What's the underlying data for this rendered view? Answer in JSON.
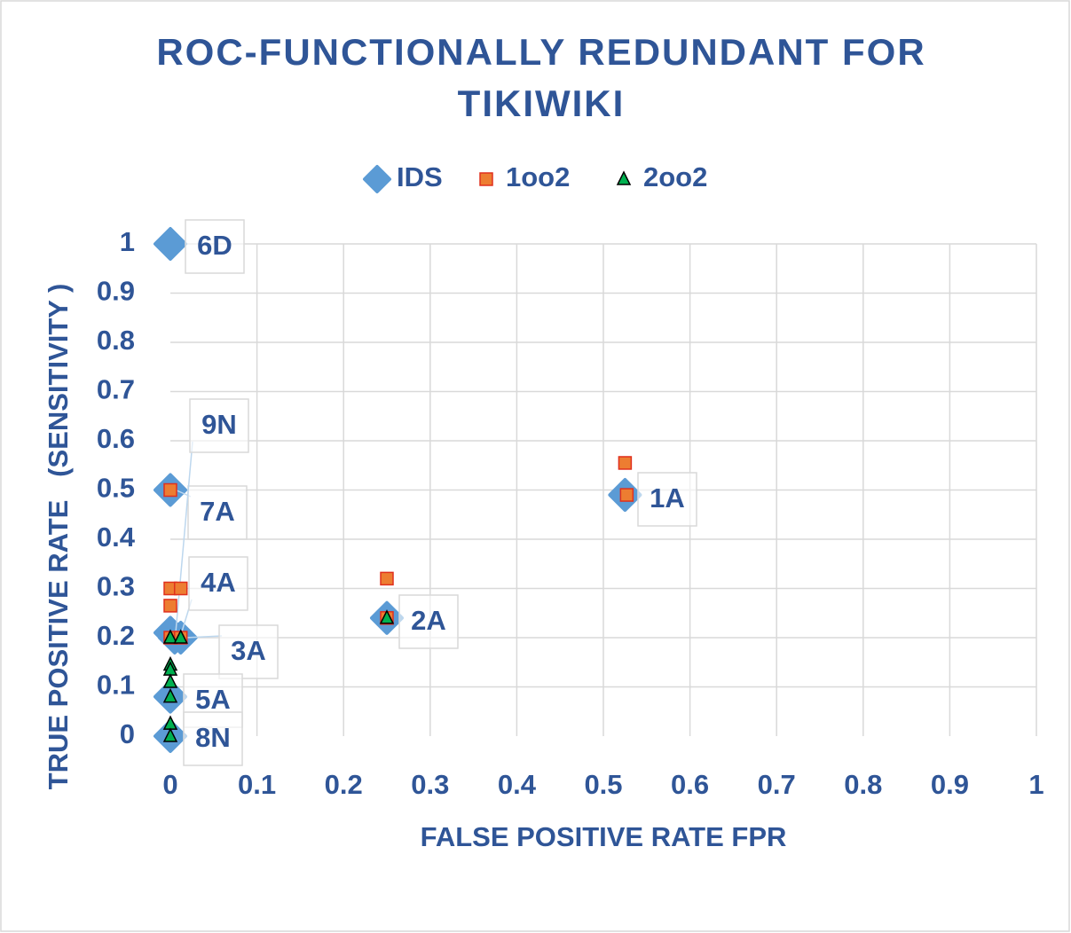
{
  "chart_data": {
    "type": "scatter",
    "title": "ROC-FUNCTIONALLY REDUNDANT FOR TIKIWIKI",
    "xlabel": "FALSE POSITIVE RATE FPR",
    "ylabel": "TRUE POSITIVE RATE   (SENSITIVITY )",
    "xlim": [
      0,
      1
    ],
    "ylim": [
      0,
      1
    ],
    "xticks": [
      0,
      0.1,
      0.2,
      0.3,
      0.4,
      0.5,
      0.6,
      0.7,
      0.8,
      0.9,
      1
    ],
    "yticks": [
      0,
      0.1,
      0.2,
      0.3,
      0.4,
      0.5,
      0.6,
      0.7,
      0.8,
      0.9,
      1
    ],
    "grid": true,
    "legend": "top",
    "series": [
      {
        "name": "IDS",
        "color": "#5b9bd5",
        "marker": "diamond",
        "x": [
          0,
          0,
          0,
          0.005,
          0.012,
          0,
          0,
          0.525,
          0.25
        ],
        "values": [
          1,
          0.5,
          0.21,
          0.2,
          0.2,
          0.08,
          0,
          0.49,
          0.24
        ],
        "point_labels": [
          "6D",
          "7A",
          "9N",
          "4A",
          "3A",
          "5A",
          "8N",
          "1A",
          "2A"
        ]
      },
      {
        "name": "1oo2",
        "color": "#ed7d31",
        "marker": "square",
        "x": [
          0,
          0,
          0.012,
          0,
          0,
          0.012,
          0.525,
          0.527,
          0.25,
          0.25
        ],
        "values": [
          0.5,
          0.3,
          0.3,
          0.265,
          0.2,
          0.2,
          0.555,
          0.49,
          0.32,
          0.24
        ]
      },
      {
        "name": "2oo2",
        "color": "#00b050",
        "marker": "triangle",
        "x": [
          0,
          0.012,
          0,
          0,
          0,
          0,
          0,
          0,
          0.25
        ],
        "values": [
          0.2,
          0.2,
          0.145,
          0.135,
          0.11,
          0.08,
          0.025,
          0,
          0.24
        ]
      }
    ]
  }
}
